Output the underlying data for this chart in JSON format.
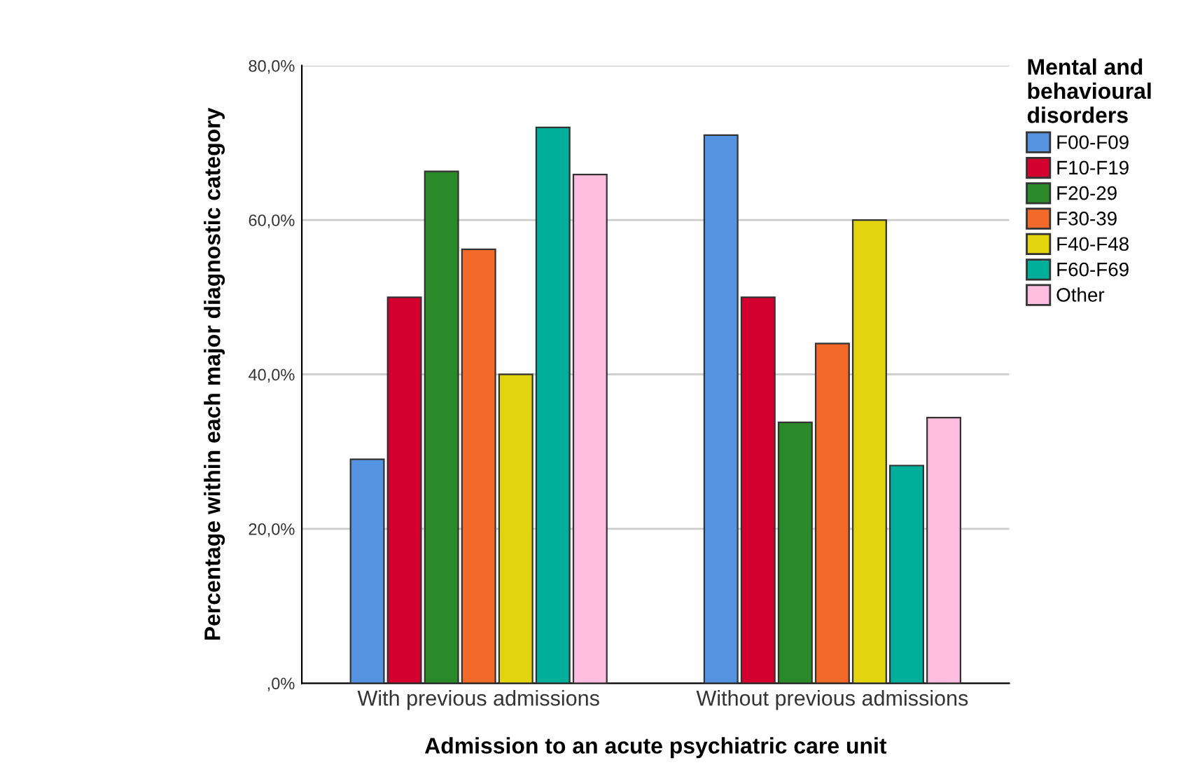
{
  "chart_data": {
    "type": "bar",
    "xlabel": "Admission to an acute psychiatric care unit",
    "ylabel": "Percentage within each major diagnostic category",
    "legend_title": "Mental and\nbehavioural\ndisorders",
    "categories": [
      "With previous admissions",
      "Without previous admissions"
    ],
    "series": [
      {
        "name": "F00-F09",
        "color": "#5592e0",
        "values": [
          29,
          71
        ]
      },
      {
        "name": "F10-F19",
        "color": "#d3002f",
        "values": [
          50,
          50
        ]
      },
      {
        "name": "F20-29",
        "color": "#2a8a2a",
        "values": [
          66.3,
          33.8
        ]
      },
      {
        "name": "F30-39",
        "color": "#f2692a",
        "values": [
          56.2,
          44
        ]
      },
      {
        "name": "F40-F48",
        "color": "#e2d40e",
        "values": [
          40,
          60
        ]
      },
      {
        "name": "F60-F69",
        "color": "#00ae9a",
        "values": [
          72,
          28.2
        ]
      },
      {
        "name": "Other",
        "color": "#fdbddf",
        "values": [
          65.9,
          34.4
        ]
      }
    ],
    "ylim": [
      0,
      80
    ],
    "yticks": [
      {
        "value": 0,
        "label": ",0%"
      },
      {
        "value": 20,
        "label": "20,0%"
      },
      {
        "value": 40,
        "label": "40,0%"
      },
      {
        "value": 60,
        "label": "60,0%"
      },
      {
        "value": 80,
        "label": "80,0%"
      }
    ],
    "grid": "y",
    "legend": "top right"
  }
}
